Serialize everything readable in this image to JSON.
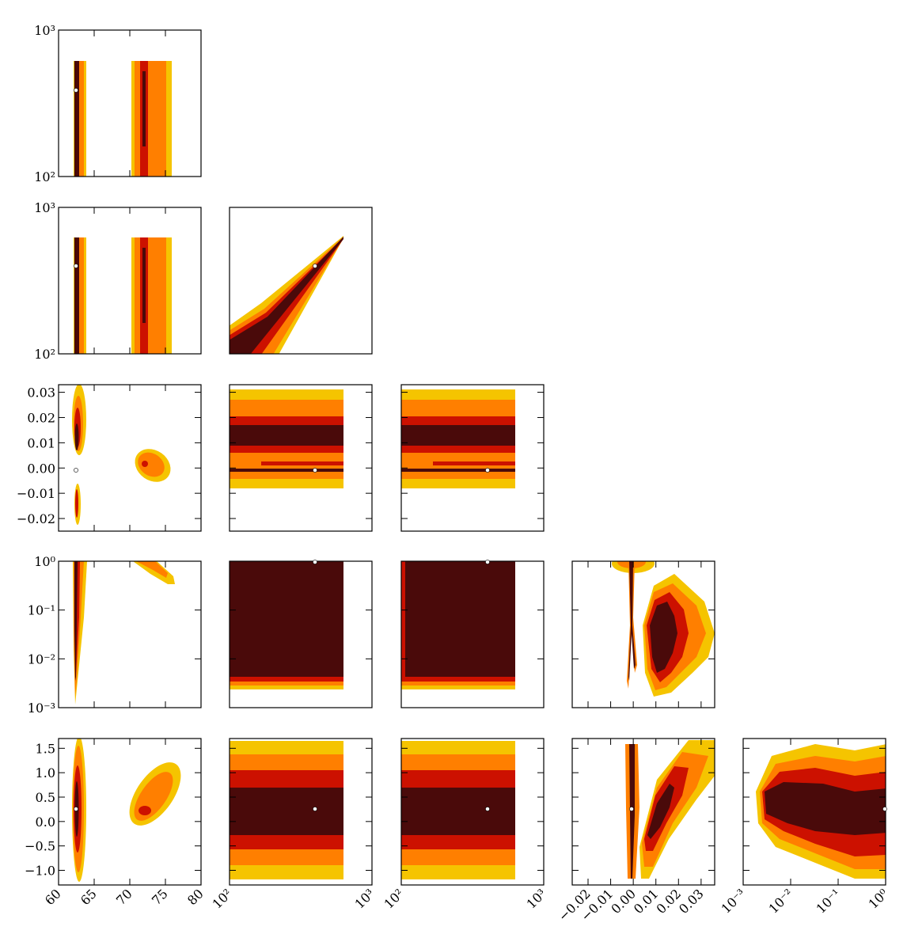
{
  "colors": {
    "level1": "#4a0a0a",
    "level2": "#cc1100",
    "level3": "#ff7f00",
    "level4": "#f5c400",
    "best_fit": "#ffffff",
    "frame": "#000000"
  },
  "chart_data": {
    "type": "scatter",
    "layout": "corner-plot",
    "rows": 5,
    "cols": 5,
    "grid": false,
    "legend": "none",
    "density_levels": [
      "level1",
      "level2",
      "level3",
      "level4"
    ],
    "x_axes": [
      {
        "col": 0,
        "scale": "linear",
        "range": [
          60,
          80
        ],
        "ticks": [
          "60",
          "65",
          "70",
          "75",
          "80"
        ],
        "tick_values": [
          60,
          65,
          70,
          75,
          80
        ]
      },
      {
        "col": 1,
        "scale": "log",
        "range": [
          100,
          1000
        ],
        "ticks": [
          "10²",
          "10³"
        ],
        "tick_values": [
          100,
          1000
        ]
      },
      {
        "col": 2,
        "scale": "log",
        "range": [
          100,
          1000
        ],
        "ticks": [
          "10²",
          "10³"
        ],
        "tick_values": [
          100,
          1000
        ]
      },
      {
        "col": 3,
        "scale": "linear",
        "range": [
          -0.027,
          0.036
        ],
        "ticks": [
          "−0.02",
          "−0.01",
          "0.00",
          "0.01",
          "0.02",
          "0.03"
        ],
        "tick_values": [
          -0.02,
          -0.01,
          0.0,
          0.01,
          0.02,
          0.03
        ]
      },
      {
        "col": 4,
        "scale": "log",
        "range": [
          0.001,
          1
        ],
        "ticks": [
          "10⁻³",
          "10⁻²",
          "10⁻¹",
          "10⁰"
        ],
        "tick_values": [
          0.001,
          0.01,
          0.1,
          1
        ]
      }
    ],
    "y_axes": [
      {
        "row": 0,
        "scale": "log",
        "range": [
          100,
          1000
        ],
        "ticks": [
          "10³",
          "10²"
        ],
        "tick_values": [
          1000,
          100
        ]
      },
      {
        "row": 1,
        "scale": "log",
        "range": [
          100,
          1000
        ],
        "ticks": [
          "10³",
          "10²"
        ],
        "tick_values": [
          1000,
          100
        ]
      },
      {
        "row": 2,
        "scale": "linear",
        "range": [
          -0.025,
          0.033
        ],
        "ticks": [
          "0.03",
          "0.02",
          "0.01",
          "0.00",
          "−0.01",
          "−0.02"
        ],
        "tick_values": [
          0.03,
          0.02,
          0.01,
          0.0,
          -0.01,
          -0.02
        ]
      },
      {
        "row": 3,
        "scale": "log",
        "range": [
          0.001,
          1
        ],
        "ticks": [
          "10⁰",
          "10⁻¹",
          "10⁻²",
          "10⁻³"
        ],
        "tick_values": [
          1,
          0.1,
          0.01,
          0.001
        ]
      },
      {
        "row": 4,
        "scale": "linear",
        "range": [
          -1.3,
          1.7
        ],
        "ticks": [
          "1.5",
          "1.0",
          "0.5",
          "0.0",
          "−0.5",
          "−1.0"
        ],
        "tick_values": [
          1.5,
          1.0,
          0.5,
          0.0,
          -0.5,
          -1.0
        ]
      }
    ],
    "best_fit": {
      "p0": 62.7,
      "p1": 390,
      "p2": 390,
      "p3": 0.0,
      "p4": 1.0,
      "p5": 0.25
    },
    "panels": [
      {
        "row": 0,
        "col": 0,
        "regions": [
          {
            "level": 4,
            "x": [
              62.3,
              64.6
            ],
            "y": [
              100,
              620
            ]
          },
          {
            "level": 3,
            "x": [
              62.4,
              64.3
            ],
            "y": [
              100,
              620
            ]
          },
          {
            "level": 1,
            "x": [
              62.6,
              63.4
            ],
            "y": [
              100,
              620
            ]
          },
          {
            "level": 4,
            "x": [
              70.4,
              75.6
            ],
            "y": [
              100,
              620
            ]
          },
          {
            "level": 3,
            "x": [
              70.9,
              75.0
            ],
            "y": [
              100,
              620
            ]
          },
          {
            "level": 2,
            "x": [
              71.6,
              72.5
            ],
            "y": [
              100,
              620
            ]
          },
          {
            "level": 1,
            "x": [
              71.9,
              72.3
            ],
            "y": [
              170,
              520
            ]
          }
        ]
      },
      {
        "row": 1,
        "col": 0,
        "regions": [
          {
            "level": 4,
            "x": [
              62.3,
              64.6
            ],
            "y": [
              100,
              620
            ]
          },
          {
            "level": 3,
            "x": [
              62.4,
              64.3
            ],
            "y": [
              100,
              620
            ]
          },
          {
            "level": 1,
            "x": [
              62.6,
              63.4
            ],
            "y": [
              100,
              620
            ]
          },
          {
            "level": 4,
            "x": [
              70.4,
              75.6
            ],
            "y": [
              100,
              620
            ]
          },
          {
            "level": 3,
            "x": [
              70.9,
              75.0
            ],
            "y": [
              100,
              620
            ]
          },
          {
            "level": 2,
            "x": [
              71.6,
              72.5
            ],
            "y": [
              100,
              620
            ]
          },
          {
            "level": 1,
            "x": [
              71.9,
              72.3
            ],
            "y": [
              170,
              520
            ]
          }
        ]
      }
    ]
  }
}
